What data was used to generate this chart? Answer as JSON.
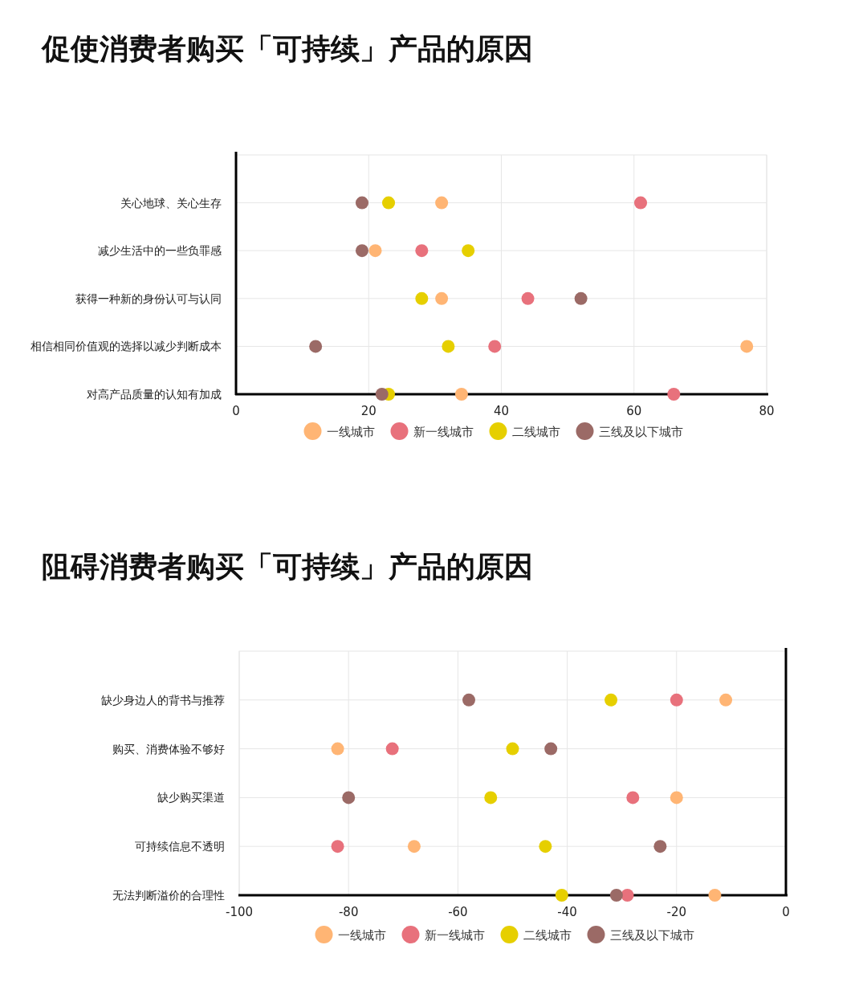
{
  "chart_data": [
    {
      "type": "scatter",
      "orientation": "horizontal",
      "title": "促使消费者购买「可持续」产品的原因",
      "categories": [
        "关心地球、关心生存",
        "减少生活中的一些负罪感",
        "获得一种新的身份认可与认同",
        "相信相同价值观的选择以减少判断成本",
        "对高产品质量的认知有加成"
      ],
      "series": [
        {
          "name": "一线城市",
          "color": "#ffb574",
          "values": [
            31,
            21,
            31,
            77,
            34
          ]
        },
        {
          "name": "新一线城市",
          "color": "#e8717c",
          "values": [
            61,
            28,
            44,
            39,
            66
          ]
        },
        {
          "name": "二线城市",
          "color": "#e6cf00",
          "values": [
            23,
            35,
            28,
            32,
            23
          ]
        },
        {
          "name": "三线及以下城市",
          "color": "#9b6a66",
          "values": [
            19,
            19,
            52,
            12,
            22
          ]
        }
      ],
      "xlim": [
        0,
        80
      ],
      "xticks": [
        0,
        20,
        40,
        60,
        80
      ],
      "grid": true,
      "legend": "bottom",
      "marker": "circle"
    },
    {
      "type": "scatter",
      "orientation": "horizontal",
      "title": "阻碍消费者购买「可持续」产品的原因",
      "categories": [
        "缺少身边人的背书与推荐",
        "购买、消费体验不够好",
        "缺少购买渠道",
        "可持续信息不透明",
        "无法判断溢价的合理性"
      ],
      "series": [
        {
          "name": "一线城市",
          "color": "#ffb574",
          "values": [
            -11,
            -82,
            -20,
            -68,
            -13
          ]
        },
        {
          "name": "新一线城市",
          "color": "#e8717c",
          "values": [
            -20,
            -72,
            -28,
            -82,
            -29
          ]
        },
        {
          "name": "二线城市",
          "color": "#e6cf00",
          "values": [
            -32,
            -50,
            -54,
            -44,
            -41
          ]
        },
        {
          "name": "三线及以下城市",
          "color": "#9b6a66",
          "values": [
            -58,
            -43,
            -80,
            -23,
            -31
          ]
        }
      ],
      "xlim": [
        -100,
        0
      ],
      "xticks": [
        -100,
        -80,
        -60,
        -40,
        -20,
        0
      ],
      "grid": true,
      "legend": "bottom",
      "marker": "circle"
    }
  ]
}
